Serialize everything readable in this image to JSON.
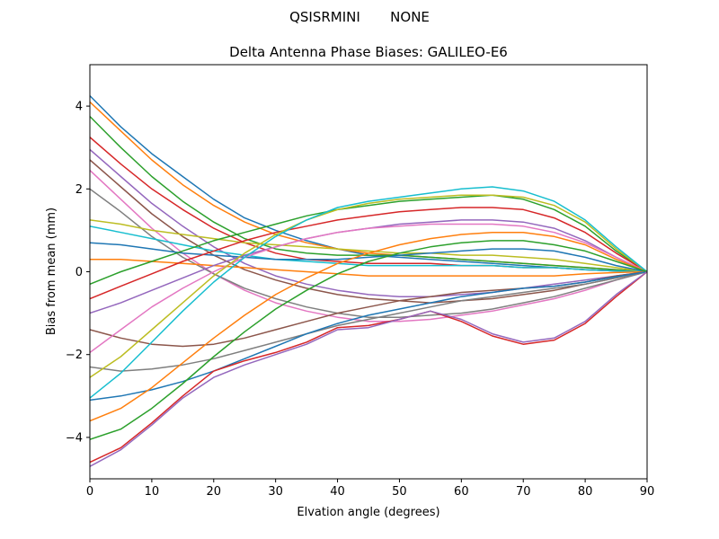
{
  "figure": {
    "suptitle": "QSISRMINI       NONE"
  },
  "chart_data": {
    "type": "line",
    "title": "Delta Antenna Phase Biases: GALILEO-E6",
    "xlabel": "Elvation angle (degrees)",
    "ylabel": "Bias from mean (mm)",
    "xlim": [
      0,
      90
    ],
    "ylim": [
      -5,
      5
    ],
    "xticks": [
      0,
      10,
      20,
      30,
      40,
      50,
      60,
      70,
      80,
      90
    ],
    "yticks": [
      -4,
      -2,
      0,
      2,
      4
    ],
    "grid": false,
    "legend": "none",
    "colors": [
      "#1f77b4",
      "#ff7f0e",
      "#2ca02c",
      "#d62728",
      "#9467bd",
      "#8c564b",
      "#e377c2",
      "#7f7f7f",
      "#bcbd22",
      "#17becf"
    ],
    "x": [
      0,
      5,
      10,
      15,
      20,
      25,
      30,
      35,
      40,
      45,
      50,
      55,
      60,
      65,
      70,
      75,
      80,
      85,
      90
    ],
    "series": [
      {
        "values": [
          4.25,
          3.5,
          2.85,
          2.3,
          1.75,
          1.3,
          1.0,
          0.75,
          0.55,
          0.4,
          0.35,
          0.3,
          0.25,
          0.2,
          0.15,
          0.1,
          0.05,
          0.02,
          0
        ]
      },
      {
        "values": [
          4.1,
          3.4,
          2.7,
          2.1,
          1.6,
          1.2,
          0.9,
          0.7,
          0.55,
          0.45,
          0.4,
          0.35,
          0.3,
          0.25,
          0.2,
          0.15,
          0.1,
          0.05,
          0
        ]
      },
      {
        "values": [
          3.75,
          3.0,
          2.3,
          1.7,
          1.2,
          0.8,
          0.55,
          0.45,
          0.4,
          0.4,
          0.4,
          0.35,
          0.3,
          0.25,
          0.2,
          0.15,
          0.1,
          0.05,
          0
        ]
      },
      {
        "values": [
          3.25,
          2.6,
          2.0,
          1.5,
          1.05,
          0.7,
          0.45,
          0.3,
          0.25,
          0.2,
          0.2,
          0.2,
          0.15,
          0.15,
          0.1,
          0.1,
          0.05,
          0.02,
          0
        ]
      },
      {
        "values": [
          2.95,
          2.3,
          1.65,
          1.1,
          0.6,
          0.2,
          -0.1,
          -0.3,
          -0.45,
          -0.55,
          -0.6,
          -0.6,
          -0.55,
          -0.5,
          -0.4,
          -0.3,
          -0.2,
          -0.1,
          0
        ]
      },
      {
        "values": [
          2.7,
          2.05,
          1.4,
          0.85,
          0.4,
          0.05,
          -0.2,
          -0.4,
          -0.55,
          -0.65,
          -0.7,
          -0.75,
          -0.7,
          -0.65,
          -0.55,
          -0.45,
          -0.3,
          -0.15,
          0
        ]
      },
      {
        "values": [
          2.45,
          1.75,
          1.05,
          0.45,
          -0.05,
          -0.45,
          -0.75,
          -0.95,
          -1.1,
          -1.2,
          -1.2,
          -1.15,
          -1.05,
          -0.95,
          -0.8,
          -0.65,
          -0.45,
          -0.2,
          0
        ]
      },
      {
        "values": [
          2.0,
          1.45,
          0.85,
          0.35,
          -0.05,
          -0.4,
          -0.65,
          -0.85,
          -1.0,
          -1.1,
          -1.1,
          -1.05,
          -1.0,
          -0.9,
          -0.75,
          -0.6,
          -0.4,
          -0.2,
          0
        ]
      },
      {
        "values": [
          1.25,
          1.15,
          1.0,
          0.9,
          0.8,
          0.7,
          0.65,
          0.6,
          0.55,
          0.5,
          0.45,
          0.45,
          0.4,
          0.4,
          0.35,
          0.3,
          0.2,
          0.1,
          0
        ]
      },
      {
        "values": [
          1.1,
          0.95,
          0.8,
          0.65,
          0.5,
          0.4,
          0.3,
          0.25,
          0.2,
          0.15,
          0.15,
          0.15,
          0.15,
          0.15,
          0.1,
          0.1,
          0.05,
          0.02,
          0
        ]
      },
      {
        "values": [
          0.7,
          0.65,
          0.55,
          0.45,
          0.4,
          0.35,
          0.3,
          0.3,
          0.3,
          0.35,
          0.4,
          0.45,
          0.5,
          0.55,
          0.55,
          0.5,
          0.35,
          0.15,
          0
        ]
      },
      {
        "values": [
          0.3,
          0.3,
          0.25,
          0.2,
          0.15,
          0.1,
          0.05,
          0.0,
          -0.05,
          -0.1,
          -0.1,
          -0.1,
          -0.1,
          -0.1,
          -0.1,
          -0.1,
          -0.05,
          -0.02,
          0
        ]
      },
      {
        "values": [
          -0.3,
          0.0,
          0.25,
          0.5,
          0.75,
          0.95,
          1.15,
          1.35,
          1.5,
          1.6,
          1.7,
          1.75,
          1.8,
          1.85,
          1.75,
          1.5,
          1.1,
          0.5,
          0
        ]
      },
      {
        "values": [
          -0.65,
          -0.35,
          -0.05,
          0.25,
          0.5,
          0.75,
          0.95,
          1.1,
          1.25,
          1.35,
          1.45,
          1.5,
          1.55,
          1.55,
          1.5,
          1.3,
          0.95,
          0.45,
          0
        ]
      },
      {
        "values": [
          -1.0,
          -0.75,
          -0.45,
          -0.15,
          0.15,
          0.4,
          0.6,
          0.8,
          0.95,
          1.05,
          1.15,
          1.2,
          1.25,
          1.25,
          1.2,
          1.05,
          0.75,
          0.35,
          0
        ]
      },
      {
        "values": [
          -1.4,
          -1.6,
          -1.75,
          -1.8,
          -1.75,
          -1.6,
          -1.4,
          -1.2,
          -1.0,
          -0.85,
          -0.7,
          -0.6,
          -0.5,
          -0.45,
          -0.4,
          -0.35,
          -0.25,
          -0.1,
          0
        ]
      },
      {
        "values": [
          -1.95,
          -1.4,
          -0.85,
          -0.4,
          0.0,
          0.35,
          0.6,
          0.8,
          0.95,
          1.05,
          1.1,
          1.15,
          1.15,
          1.15,
          1.1,
          0.95,
          0.7,
          0.35,
          0
        ]
      },
      {
        "values": [
          -2.3,
          -2.4,
          -2.35,
          -2.25,
          -2.1,
          -1.9,
          -1.7,
          -1.5,
          -1.3,
          -1.15,
          -1.0,
          -0.85,
          -0.7,
          -0.6,
          -0.5,
          -0.4,
          -0.3,
          -0.15,
          0
        ]
      },
      {
        "values": [
          -2.55,
          -2.05,
          -1.4,
          -0.75,
          -0.1,
          0.45,
          0.9,
          1.25,
          1.5,
          1.65,
          1.75,
          1.8,
          1.85,
          1.85,
          1.8,
          1.6,
          1.2,
          0.55,
          0
        ]
      },
      {
        "values": [
          -3.05,
          -2.45,
          -1.7,
          -0.95,
          -0.25,
          0.35,
          0.85,
          1.25,
          1.55,
          1.7,
          1.8,
          1.9,
          2.0,
          2.05,
          1.95,
          1.7,
          1.25,
          0.6,
          0
        ]
      },
      {
        "values": [
          -3.1,
          -3.0,
          -2.85,
          -2.65,
          -2.4,
          -2.1,
          -1.8,
          -1.5,
          -1.25,
          -1.05,
          -0.9,
          -0.75,
          -0.6,
          -0.5,
          -0.4,
          -0.35,
          -0.25,
          -0.12,
          0
        ]
      },
      {
        "values": [
          -3.6,
          -3.3,
          -2.8,
          -2.2,
          -1.6,
          -1.05,
          -0.55,
          -0.15,
          0.2,
          0.45,
          0.65,
          0.8,
          0.9,
          0.95,
          0.95,
          0.85,
          0.65,
          0.3,
          0
        ]
      },
      {
        "values": [
          -4.05,
          -3.8,
          -3.3,
          -2.7,
          -2.05,
          -1.45,
          -0.9,
          -0.45,
          -0.05,
          0.25,
          0.45,
          0.6,
          0.7,
          0.75,
          0.75,
          0.65,
          0.5,
          0.25,
          0
        ]
      },
      {
        "values": [
          -4.6,
          -4.25,
          -3.65,
          -3.0,
          -2.4,
          -2.15,
          -1.95,
          -1.7,
          -1.35,
          -1.3,
          -1.15,
          -0.95,
          -1.2,
          -1.55,
          -1.75,
          -1.65,
          -1.25,
          -0.6,
          0
        ]
      },
      {
        "values": [
          -4.7,
          -4.3,
          -3.7,
          -3.05,
          -2.55,
          -2.25,
          -2.0,
          -1.75,
          -1.4,
          -1.35,
          -1.15,
          -0.95,
          -1.15,
          -1.5,
          -1.7,
          -1.6,
          -1.2,
          -0.55,
          0
        ]
      }
    ]
  }
}
